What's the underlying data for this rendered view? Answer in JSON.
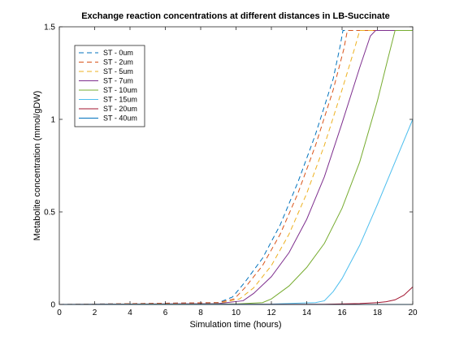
{
  "chart_data": {
    "type": "line",
    "title": "Exchange reaction concentrations at different distances in LB-Succinate",
    "xlabel": "Simulation time (hours)",
    "ylabel": "Metabolite concentration (mmol/gDW)",
    "xlim": [
      0,
      20
    ],
    "ylim": [
      0,
      1.5
    ],
    "xticks": [
      0,
      2,
      4,
      6,
      8,
      10,
      12,
      14,
      16,
      18,
      20
    ],
    "xtick_labels": [
      "0",
      "2",
      "4",
      "6",
      "8",
      "10",
      "12",
      "14",
      "16",
      "18",
      "20"
    ],
    "yticks": [
      0,
      0.5,
      1,
      1.5
    ],
    "ytick_labels": [
      "0",
      "0.5",
      "1",
      "1.5"
    ],
    "grid": false,
    "legend_position": "top-left",
    "series": [
      {
        "name": "ST - 0um",
        "color": "#0072BD",
        "dash": "dashed",
        "x": [
          0,
          9,
          9.8,
          10.5,
          11.5,
          12.5,
          13.5,
          14.5,
          15.5,
          15.9,
          16.05,
          20
        ],
        "y": [
          0,
          0.01,
          0.04,
          0.12,
          0.25,
          0.43,
          0.66,
          0.92,
          1.22,
          1.4,
          1.48,
          1.48
        ]
      },
      {
        "name": "ST - 2um",
        "color": "#D95319",
        "dash": "dashed",
        "x": [
          0,
          9,
          9.9,
          10.5,
          11.5,
          12.5,
          13.5,
          14.5,
          15.5,
          16.1,
          16.3,
          20
        ],
        "y": [
          0,
          0.01,
          0.03,
          0.09,
          0.21,
          0.38,
          0.6,
          0.86,
          1.16,
          1.38,
          1.48,
          1.48
        ]
      },
      {
        "name": "ST - 5um",
        "color": "#EDB120",
        "dash": "dashed",
        "x": [
          0,
          9,
          10.2,
          11,
          12,
          13,
          14,
          15,
          16,
          16.7,
          17,
          20
        ],
        "y": [
          0,
          0.005,
          0.03,
          0.09,
          0.21,
          0.38,
          0.6,
          0.86,
          1.16,
          1.38,
          1.48,
          1.48
        ]
      },
      {
        "name": "ST - 7um",
        "color": "#7E2F8E",
        "dash": "solid",
        "x": [
          0,
          9,
          10.4,
          11,
          12,
          13,
          14,
          15,
          16,
          17,
          17.6,
          17.9,
          20
        ],
        "y": [
          0,
          0.005,
          0.02,
          0.06,
          0.15,
          0.28,
          0.46,
          0.69,
          0.98,
          1.28,
          1.45,
          1.48,
          1.48
        ]
      },
      {
        "name": "ST - 10um",
        "color": "#77AC30",
        "dash": "solid",
        "x": [
          0,
          10,
          11.5,
          12,
          13,
          14,
          15,
          16,
          17,
          18,
          18.6,
          19,
          20
        ],
        "y": [
          0,
          0.003,
          0.01,
          0.03,
          0.1,
          0.2,
          0.33,
          0.52,
          0.77,
          1.1,
          1.33,
          1.48,
          1.48
        ]
      },
      {
        "name": "ST - 15um",
        "color": "#4DBEEE",
        "dash": "solid",
        "x": [
          0,
          12,
          14.5,
          15,
          15.5,
          16,
          17,
          18,
          19,
          20
        ],
        "y": [
          0,
          0.002,
          0.01,
          0.02,
          0.07,
          0.14,
          0.32,
          0.54,
          0.77,
          1.0
        ]
      },
      {
        "name": "ST - 20um",
        "color": "#A2142F",
        "dash": "solid",
        "x": [
          0,
          15,
          17,
          18,
          18.5,
          19,
          19.5,
          20
        ],
        "y": [
          0,
          0.001,
          0.005,
          0.01,
          0.015,
          0.025,
          0.05,
          0.095
        ]
      },
      {
        "name": "ST - 40um",
        "color": "#0072BD",
        "dash": "solid",
        "x": [
          0,
          20
        ],
        "y": [
          0,
          0
        ]
      }
    ]
  }
}
